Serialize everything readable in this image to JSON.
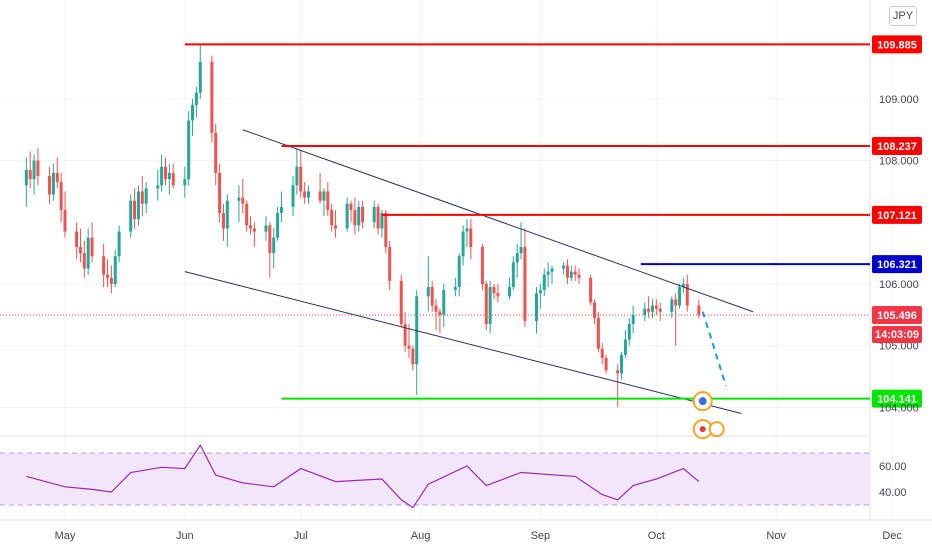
{
  "currency": "JPY",
  "countdown": "14:03:09",
  "colors": {
    "up": "#26a69a",
    "down": "#ef5350",
    "resistance": "#ff0000",
    "blue_level": "#0000cc",
    "support": "#00e600",
    "channel": "#2b2b6b",
    "projection": "#2196f3",
    "rsi_line": "#9c27b0",
    "rsi_band": "#f2e6fb",
    "current_price": "#f23645"
  },
  "chart_data": {
    "type": "candlestick",
    "x_axis": {
      "labels": [
        "May",
        "Jun",
        "Jul",
        "Aug",
        "Sep",
        "Oct",
        "Nov",
        "Dec"
      ]
    },
    "y_axis": {
      "tick_labels": [
        "109.000",
        "108.000",
        "106.000",
        "105.000",
        "104.000"
      ],
      "range": [
        103.6,
        110.15
      ]
    },
    "price_levels": [
      {
        "name": "resistance-1",
        "label": "109.885",
        "value": 109.885,
        "color": "#ff0000",
        "from": "Jun 1"
      },
      {
        "name": "resistance-2",
        "label": "108.237",
        "value": 108.237,
        "color": "#ff0000",
        "from": "Jun 26"
      },
      {
        "name": "resistance-3",
        "label": "107.121",
        "value": 107.121,
        "color": "#ff0000",
        "from": "Jul 22"
      },
      {
        "name": "resistance-4",
        "label": "106.321",
        "value": 106.321,
        "color": "#0000cc",
        "from": "Sep 27"
      },
      {
        "name": "support",
        "label": "104.141",
        "value": 104.141,
        "color": "#00e600",
        "from": "Jun 26"
      }
    ],
    "current_price": {
      "label": "105.496",
      "value": 105.496
    },
    "channel": {
      "upper": [
        {
          "date": "Jun 16",
          "price": 108.5
        },
        {
          "date": "Oct 26",
          "price": 105.55
        }
      ],
      "lower": [
        {
          "date": "Jun 1",
          "price": 106.2
        },
        {
          "date": "Oct 23",
          "price": 103.9
        }
      ]
    },
    "projection": [
      {
        "date": "Oct 13",
        "price": 105.55
      },
      {
        "date": "Oct 19",
        "price": 104.35
      }
    ],
    "candles": [
      {
        "date": "Apr 21",
        "o": 107.6,
        "h": 108.05,
        "l": 107.25,
        "c": 107.85
      },
      {
        "date": "Apr 22",
        "o": 107.85,
        "h": 108.15,
        "l": 107.55,
        "c": 107.7
      },
      {
        "date": "Apr 23",
        "o": 107.7,
        "h": 108.1,
        "l": 107.45,
        "c": 108.0
      },
      {
        "date": "Apr 24",
        "o": 108.0,
        "h": 108.2,
        "l": 107.6,
        "c": 107.75
      },
      {
        "date": "Apr 27",
        "o": 107.75,
        "h": 107.9,
        "l": 107.3,
        "c": 107.45
      },
      {
        "date": "Apr 28",
        "o": 107.45,
        "h": 107.95,
        "l": 107.35,
        "c": 107.8
      },
      {
        "date": "Apr 29",
        "o": 107.8,
        "h": 108.05,
        "l": 107.55,
        "c": 107.65
      },
      {
        "date": "Apr 30",
        "o": 107.65,
        "h": 107.8,
        "l": 107.0,
        "c": 107.2
      },
      {
        "date": "May 1",
        "o": 107.2,
        "h": 107.5,
        "l": 106.75,
        "c": 106.85
      },
      {
        "date": "May 4",
        "o": 106.85,
        "h": 107.0,
        "l": 106.4,
        "c": 106.6
      },
      {
        "date": "May 5",
        "o": 106.6,
        "h": 106.9,
        "l": 106.35,
        "c": 106.5
      },
      {
        "date": "May 6",
        "o": 106.5,
        "h": 106.7,
        "l": 106.1,
        "c": 106.25
      },
      {
        "date": "May 7",
        "o": 106.25,
        "h": 106.9,
        "l": 106.15,
        "c": 106.75
      },
      {
        "date": "May 8",
        "o": 106.75,
        "h": 107.0,
        "l": 106.35,
        "c": 106.45
      },
      {
        "date": "May 11",
        "o": 106.45,
        "h": 106.65,
        "l": 105.95,
        "c": 106.15
      },
      {
        "date": "May 12",
        "o": 106.15,
        "h": 106.4,
        "l": 105.95,
        "c": 106.1
      },
      {
        "date": "May 13",
        "o": 106.1,
        "h": 106.3,
        "l": 105.85,
        "c": 106.0
      },
      {
        "date": "May 14",
        "o": 106.0,
        "h": 106.55,
        "l": 105.95,
        "c": 106.45
      },
      {
        "date": "May 15",
        "o": 106.45,
        "h": 106.95,
        "l": 106.35,
        "c": 106.85
      },
      {
        "date": "May 18",
        "o": 106.85,
        "h": 107.45,
        "l": 106.75,
        "c": 107.35
      },
      {
        "date": "May 19",
        "o": 107.35,
        "h": 107.55,
        "l": 106.9,
        "c": 107.05
      },
      {
        "date": "May 20",
        "o": 107.05,
        "h": 107.6,
        "l": 106.95,
        "c": 107.5
      },
      {
        "date": "May 21",
        "o": 107.5,
        "h": 107.75,
        "l": 107.1,
        "c": 107.3
      },
      {
        "date": "May 22",
        "o": 107.3,
        "h": 107.65,
        "l": 107.15,
        "c": 107.55
      },
      {
        "date": "May 25",
        "o": 107.55,
        "h": 107.85,
        "l": 107.35,
        "c": 107.6
      },
      {
        "date": "May 26",
        "o": 107.6,
        "h": 108.1,
        "l": 107.5,
        "c": 107.9
      },
      {
        "date": "May 27",
        "o": 107.9,
        "h": 108.05,
        "l": 107.6,
        "c": 107.7
      },
      {
        "date": "May 28",
        "o": 107.7,
        "h": 107.95,
        "l": 107.45,
        "c": 107.8
      },
      {
        "date": "May 29",
        "o": 107.8,
        "h": 107.95,
        "l": 107.55,
        "c": 107.6
      },
      {
        "date": "Jun 1",
        "o": 107.6,
        "h": 107.9,
        "l": 107.4,
        "c": 107.7
      },
      {
        "date": "Jun 2",
        "o": 107.7,
        "h": 108.8,
        "l": 107.6,
        "c": 108.65
      },
      {
        "date": "Jun 3",
        "o": 108.65,
        "h": 109.0,
        "l": 108.4,
        "c": 108.9
      },
      {
        "date": "Jun 4",
        "o": 108.9,
        "h": 109.2,
        "l": 108.7,
        "c": 109.1
      },
      {
        "date": "Jun 5",
        "o": 109.1,
        "h": 109.885,
        "l": 109.0,
        "c": 109.6
      },
      {
        "date": "Jun 8",
        "o": 109.6,
        "h": 109.7,
        "l": 108.3,
        "c": 108.45
      },
      {
        "date": "Jun 9",
        "o": 108.45,
        "h": 108.6,
        "l": 107.6,
        "c": 107.8
      },
      {
        "date": "Jun 10",
        "o": 107.8,
        "h": 107.95,
        "l": 107.0,
        "c": 107.15
      },
      {
        "date": "Jun 11",
        "o": 107.15,
        "h": 107.3,
        "l": 106.7,
        "c": 106.9
      },
      {
        "date": "Jun 12",
        "o": 106.9,
        "h": 107.45,
        "l": 106.6,
        "c": 107.35
      },
      {
        "date": "Jun 15",
        "o": 107.35,
        "h": 107.6,
        "l": 107.0,
        "c": 107.4
      },
      {
        "date": "Jun 16",
        "o": 107.4,
        "h": 107.7,
        "l": 107.15,
        "c": 107.3
      },
      {
        "date": "Jun 17",
        "o": 107.3,
        "h": 107.35,
        "l": 106.85,
        "c": 106.95
      },
      {
        "date": "Jun 18",
        "o": 106.95,
        "h": 107.1,
        "l": 106.8,
        "c": 106.9
      },
      {
        "date": "Jun 19",
        "o": 106.9,
        "h": 107.0,
        "l": 106.6,
        "c": 106.85
      },
      {
        "date": "Jun 22",
        "o": 106.85,
        "h": 107.1,
        "l": 106.7,
        "c": 106.95
      },
      {
        "date": "Jun 23",
        "o": 106.95,
        "h": 107.0,
        "l": 106.1,
        "c": 106.5
      },
      {
        "date": "Jun 24",
        "o": 106.5,
        "h": 106.9,
        "l": 106.25,
        "c": 106.75
      },
      {
        "date": "Jun 25",
        "o": 106.75,
        "h": 107.25,
        "l": 106.7,
        "c": 107.15
      },
      {
        "date": "Jun 26",
        "o": 107.15,
        "h": 107.5,
        "l": 107.0,
        "c": 107.25
      },
      {
        "date": "Jun 29",
        "o": 107.25,
        "h": 107.75,
        "l": 107.1,
        "c": 107.6
      },
      {
        "date": "Jun 30",
        "o": 107.6,
        "h": 108.2,
        "l": 107.45,
        "c": 107.9
      },
      {
        "date": "Jul 1",
        "o": 107.9,
        "h": 108.16,
        "l": 107.4,
        "c": 107.5
      },
      {
        "date": "Jul 2",
        "o": 107.5,
        "h": 107.65,
        "l": 107.3,
        "c": 107.4
      },
      {
        "date": "Jul 3",
        "o": 107.4,
        "h": 107.6,
        "l": 107.3,
        "c": 107.5
      },
      {
        "date": "Jul 6",
        "o": 107.5,
        "h": 107.8,
        "l": 107.3,
        "c": 107.35
      },
      {
        "date": "Jul 7",
        "o": 107.35,
        "h": 107.55,
        "l": 107.1,
        "c": 107.5
      },
      {
        "date": "Jul 8",
        "o": 107.5,
        "h": 107.65,
        "l": 107.1,
        "c": 107.2
      },
      {
        "date": "Jul 9",
        "o": 107.2,
        "h": 107.3,
        "l": 106.85,
        "c": 106.95
      },
      {
        "date": "Jul 10",
        "o": 106.95,
        "h": 107.2,
        "l": 106.75,
        "c": 106.9
      },
      {
        "date": "Jul 13",
        "o": 106.9,
        "h": 107.4,
        "l": 106.85,
        "c": 107.3
      },
      {
        "date": "Jul 14",
        "o": 107.3,
        "h": 107.35,
        "l": 107.0,
        "c": 107.2
      },
      {
        "date": "Jul 15",
        "o": 107.2,
        "h": 107.4,
        "l": 106.8,
        "c": 106.95
      },
      {
        "date": "Jul 16",
        "o": 106.95,
        "h": 107.35,
        "l": 106.85,
        "c": 107.25
      },
      {
        "date": "Jul 17",
        "o": 107.25,
        "h": 107.35,
        "l": 106.9,
        "c": 107.0
      },
      {
        "date": "Jul 20",
        "o": 107.0,
        "h": 107.35,
        "l": 106.9,
        "c": 107.25
      },
      {
        "date": "Jul 21",
        "o": 107.25,
        "h": 107.3,
        "l": 106.8,
        "c": 106.9
      },
      {
        "date": "Jul 22",
        "o": 106.9,
        "h": 107.2,
        "l": 106.75,
        "c": 107.15
      },
      {
        "date": "Jul 23",
        "o": 107.15,
        "h": 107.2,
        "l": 106.5,
        "c": 106.6
      },
      {
        "date": "Jul 24",
        "o": 106.6,
        "h": 106.7,
        "l": 105.9,
        "c": 106.05
      },
      {
        "date": "Jul 27",
        "o": 106.05,
        "h": 106.15,
        "l": 105.3,
        "c": 105.35
      },
      {
        "date": "Jul 28",
        "o": 105.35,
        "h": 105.55,
        "l": 104.9,
        "c": 105.0
      },
      {
        "date": "Jul 29",
        "o": 105.0,
        "h": 105.35,
        "l": 104.8,
        "c": 104.95
      },
      {
        "date": "Jul 30",
        "o": 104.95,
        "h": 105.0,
        "l": 104.6,
        "c": 104.7
      },
      {
        "date": "Jul 31",
        "o": 104.7,
        "h": 105.9,
        "l": 104.2,
        "c": 105.8
      },
      {
        "date": "Aug 3",
        "o": 105.8,
        "h": 106.45,
        "l": 105.55,
        "c": 105.95
      },
      {
        "date": "Aug 4",
        "o": 105.95,
        "h": 106.05,
        "l": 105.55,
        "c": 105.65
      },
      {
        "date": "Aug 5",
        "o": 105.65,
        "h": 105.75,
        "l": 105.25,
        "c": 105.55
      },
      {
        "date": "Aug 6",
        "o": 105.55,
        "h": 105.6,
        "l": 105.2,
        "c": 105.5
      },
      {
        "date": "Aug 7",
        "o": 105.5,
        "h": 106.0,
        "l": 105.3,
        "c": 105.9
      },
      {
        "date": "Aug 10",
        "o": 105.9,
        "h": 106.1,
        "l": 105.8,
        "c": 105.95
      },
      {
        "date": "Aug 11",
        "o": 105.95,
        "h": 106.5,
        "l": 105.8,
        "c": 106.45
      },
      {
        "date": "Aug 12",
        "o": 106.45,
        "h": 106.95,
        "l": 106.3,
        "c": 106.85
      },
      {
        "date": "Aug 13",
        "o": 106.85,
        "h": 107.05,
        "l": 106.6,
        "c": 106.9
      },
      {
        "date": "Aug 14",
        "o": 106.9,
        "h": 107.05,
        "l": 106.4,
        "c": 106.6
      },
      {
        "date": "Aug 17",
        "o": 106.6,
        "h": 106.65,
        "l": 105.9,
        "c": 106.0
      },
      {
        "date": "Aug 18",
        "o": 106.0,
        "h": 106.05,
        "l": 105.25,
        "c": 105.35
      },
      {
        "date": "Aug 19",
        "o": 105.35,
        "h": 106.05,
        "l": 105.2,
        "c": 105.95
      },
      {
        "date": "Aug 20",
        "o": 105.95,
        "h": 106.0,
        "l": 105.75,
        "c": 105.85
      },
      {
        "date": "Aug 21",
        "o": 105.85,
        "h": 106.0,
        "l": 105.7,
        "c": 105.8
      },
      {
        "date": "Aug 24",
        "o": 105.8,
        "h": 106.1,
        "l": 105.75,
        "c": 105.95
      },
      {
        "date": "Aug 25",
        "o": 105.95,
        "h": 106.45,
        "l": 105.9,
        "c": 106.35
      },
      {
        "date": "Aug 26",
        "o": 106.35,
        "h": 106.65,
        "l": 106.1,
        "c": 106.5
      },
      {
        "date": "Aug 27",
        "o": 106.5,
        "h": 107.0,
        "l": 106.4,
        "c": 106.6
      },
      {
        "date": "Aug 28",
        "o": 106.6,
        "h": 106.9,
        "l": 105.3,
        "c": 105.4
      },
      {
        "date": "Aug 31",
        "o": 105.4,
        "h": 105.95,
        "l": 105.2,
        "c": 105.85
      },
      {
        "date": "Sep 1",
        "o": 105.85,
        "h": 106.0,
        "l": 105.6,
        "c": 105.9
      },
      {
        "date": "Sep 2",
        "o": 105.9,
        "h": 106.25,
        "l": 105.8,
        "c": 106.15
      },
      {
        "date": "Sep 3",
        "o": 106.15,
        "h": 106.35,
        "l": 105.95,
        "c": 106.2
      },
      {
        "date": "Sep 4",
        "o": 106.2,
        "h": 106.3,
        "l": 106.0,
        "c": 106.25
      },
      {
        "date": "Sep 7",
        "o": 106.25,
        "h": 106.35,
        "l": 106.15,
        "c": 106.3
      },
      {
        "date": "Sep 8",
        "o": 106.3,
        "h": 106.4,
        "l": 106.0,
        "c": 106.1
      },
      {
        "date": "Sep 9",
        "o": 106.1,
        "h": 106.3,
        "l": 106.05,
        "c": 106.2
      },
      {
        "date": "Sep 10",
        "o": 106.2,
        "h": 106.3,
        "l": 106.05,
        "c": 106.15
      },
      {
        "date": "Sep 11",
        "o": 106.15,
        "h": 106.25,
        "l": 106.0,
        "c": 106.1
      },
      {
        "date": "Sep 14",
        "o": 106.1,
        "h": 106.15,
        "l": 105.65,
        "c": 105.7
      },
      {
        "date": "Sep 15",
        "o": 105.7,
        "h": 105.75,
        "l": 105.35,
        "c": 105.45
      },
      {
        "date": "Sep 16",
        "o": 105.45,
        "h": 105.55,
        "l": 104.9,
        "c": 104.95
      },
      {
        "date": "Sep 17",
        "o": 104.95,
        "h": 105.05,
        "l": 104.7,
        "c": 104.8
      },
      {
        "date": "Sep 18",
        "o": 104.8,
        "h": 104.85,
        "l": 104.55,
        "c": 104.6
      },
      {
        "date": "Sep 21",
        "o": 104.6,
        "h": 104.7,
        "l": 104.0,
        "c": 104.55
      },
      {
        "date": "Sep 22",
        "o": 104.55,
        "h": 104.9,
        "l": 104.45,
        "c": 104.85
      },
      {
        "date": "Sep 23",
        "o": 104.85,
        "h": 105.25,
        "l": 104.8,
        "c": 105.1
      },
      {
        "date": "Sep 24",
        "o": 105.1,
        "h": 105.45,
        "l": 105.0,
        "c": 105.35
      },
      {
        "date": "Sep 25",
        "o": 105.35,
        "h": 105.65,
        "l": 105.2,
        "c": 105.5
      },
      {
        "date": "Sep 28",
        "o": 105.5,
        "h": 105.7,
        "l": 105.4,
        "c": 105.6
      },
      {
        "date": "Sep 29",
        "o": 105.6,
        "h": 105.8,
        "l": 105.45,
        "c": 105.55
      },
      {
        "date": "Sep 30",
        "o": 105.55,
        "h": 105.75,
        "l": 105.45,
        "c": 105.65
      },
      {
        "date": "Oct 1",
        "o": 105.65,
        "h": 105.75,
        "l": 105.5,
        "c": 105.6
      },
      {
        "date": "Oct 2",
        "o": 105.6,
        "h": 105.7,
        "l": 105.4,
        "c": 105.55
      },
      {
        "date": "Oct 5",
        "o": 105.55,
        "h": 105.8,
        "l": 105.45,
        "c": 105.75
      },
      {
        "date": "Oct 6",
        "o": 105.75,
        "h": 105.85,
        "l": 105.0,
        "c": 105.65
      },
      {
        "date": "Oct 7",
        "o": 105.65,
        "h": 106.0,
        "l": 105.6,
        "c": 105.95
      },
      {
        "date": "Oct 8",
        "o": 105.95,
        "h": 106.1,
        "l": 105.85,
        "c": 106.0
      },
      {
        "date": "Oct 9",
        "o": 106.0,
        "h": 106.15,
        "l": 105.55,
        "c": 105.65
      },
      {
        "date": "Oct 12",
        "o": 105.65,
        "h": 105.75,
        "l": 105.45,
        "c": 105.496
      }
    ],
    "rsi": {
      "y_tick_labels": [
        "60.00",
        "40.00"
      ],
      "range": [
        20,
        80
      ],
      "band": [
        30,
        70
      ],
      "values": [
        {
          "date": "Apr 21",
          "v": 52
        },
        {
          "date": "May 1",
          "v": 44
        },
        {
          "date": "May 8",
          "v": 42
        },
        {
          "date": "May 13",
          "v": 40
        },
        {
          "date": "May 18",
          "v": 55
        },
        {
          "date": "May 26",
          "v": 59
        },
        {
          "date": "Jun 1",
          "v": 58
        },
        {
          "date": "Jun 5",
          "v": 76
        },
        {
          "date": "Jun 9",
          "v": 53
        },
        {
          "date": "Jun 16",
          "v": 47
        },
        {
          "date": "Jun 24",
          "v": 44
        },
        {
          "date": "Jul 1",
          "v": 58
        },
        {
          "date": "Jul 10",
          "v": 48
        },
        {
          "date": "Jul 22",
          "v": 50
        },
        {
          "date": "Jul 27",
          "v": 34
        },
        {
          "date": "Jul 30",
          "v": 28
        },
        {
          "date": "Aug 3",
          "v": 46
        },
        {
          "date": "Aug 13",
          "v": 60
        },
        {
          "date": "Aug 18",
          "v": 45
        },
        {
          "date": "Aug 27",
          "v": 55
        },
        {
          "date": "Sep 10",
          "v": 52
        },
        {
          "date": "Sep 17",
          "v": 38
        },
        {
          "date": "Sep 21",
          "v": 34
        },
        {
          "date": "Sep 25",
          "v": 45
        },
        {
          "date": "Oct 1",
          "v": 50
        },
        {
          "date": "Oct 8",
          "v": 58
        },
        {
          "date": "Oct 12",
          "v": 48
        }
      ]
    },
    "grid": true
  }
}
